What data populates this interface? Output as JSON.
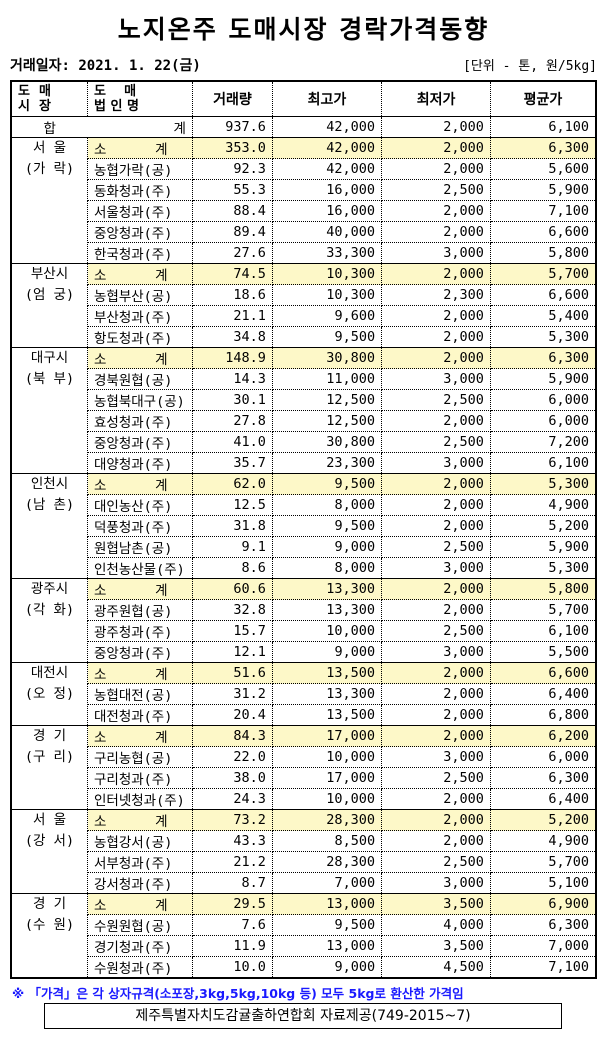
{
  "title": "노지온주 도매시장 경락가격동향",
  "date_label": "거래일자: 2021. 1. 22(금)",
  "unit_label": "[단위 - 톤, 원/5kg]",
  "headers": {
    "market": "도  매\n시  장",
    "corp": "도    매\n법 인 명",
    "volume": "거래량",
    "max": "최고가",
    "min": "최저가",
    "avg": "평균가"
  },
  "total": {
    "label1": "합",
    "label2": "계",
    "volume": "937.6",
    "max": "42,000",
    "min": "2,000",
    "avg": "6,100"
  },
  "groups": [
    {
      "market": [
        "서  울",
        "(가 락)"
      ],
      "rows": [
        [
          "소      계",
          "353.0",
          "42,000",
          "2,000",
          "6,300"
        ],
        [
          "농협가락(공)",
          "92.3",
          "42,000",
          "2,000",
          "5,600"
        ],
        [
          "동화청과(주)",
          "55.3",
          "16,000",
          "2,500",
          "5,900"
        ],
        [
          "서울청과(주)",
          "88.4",
          "16,000",
          "2,000",
          "7,100"
        ],
        [
          "중앙청과(주)",
          "89.4",
          "40,000",
          "2,000",
          "6,600"
        ],
        [
          "한국청과(주)",
          "27.6",
          "33,300",
          "3,000",
          "5,800"
        ]
      ]
    },
    {
      "market": [
        "부산시",
        "(엄 궁)"
      ],
      "rows": [
        [
          "소      계",
          "74.5",
          "10,300",
          "2,000",
          "5,700"
        ],
        [
          "농협부산(공)",
          "18.6",
          "10,300",
          "2,300",
          "6,600"
        ],
        [
          "부산청과(주)",
          "21.1",
          "9,600",
          "2,000",
          "5,400"
        ],
        [
          "항도청과(주)",
          "34.8",
          "9,500",
          "2,000",
          "5,300"
        ]
      ]
    },
    {
      "market": [
        "대구시",
        "(북 부)"
      ],
      "rows": [
        [
          "소      계",
          "148.9",
          "30,800",
          "2,000",
          "6,300"
        ],
        [
          "경북원협(공)",
          "14.3",
          "11,000",
          "3,000",
          "5,900"
        ],
        [
          "농협북대구(공)",
          "30.1",
          "12,500",
          "2,500",
          "6,000"
        ],
        [
          "효성청과(주)",
          "27.8",
          "12,500",
          "2,000",
          "6,000"
        ],
        [
          "중앙청과(주)",
          "41.0",
          "30,800",
          "2,500",
          "7,200"
        ],
        [
          "대양청과(주)",
          "35.7",
          "23,300",
          "3,000",
          "6,100"
        ]
      ]
    },
    {
      "market": [
        "인천시",
        "(남 촌)"
      ],
      "rows": [
        [
          "소      계",
          "62.0",
          "9,500",
          "2,000",
          "5,300"
        ],
        [
          "대인농산(주)",
          "12.5",
          "8,000",
          "2,000",
          "4,900"
        ],
        [
          "덕풍청과(주)",
          "31.8",
          "9,500",
          "2,000",
          "5,200"
        ],
        [
          "원협남촌(공)",
          "9.1",
          "9,000",
          "2,500",
          "5,900"
        ],
        [
          "인천농산물(주)",
          "8.6",
          "8,000",
          "3,000",
          "5,300"
        ]
      ]
    },
    {
      "market": [
        "광주시",
        "(각 화)"
      ],
      "rows": [
        [
          "소      계",
          "60.6",
          "13,300",
          "2,000",
          "5,800"
        ],
        [
          "광주원협(공)",
          "32.8",
          "13,300",
          "2,000",
          "5,700"
        ],
        [
          "광주청과(주)",
          "15.7",
          "10,000",
          "2,500",
          "6,100"
        ],
        [
          "중앙청과(주)",
          "12.1",
          "9,000",
          "3,000",
          "5,500"
        ]
      ]
    },
    {
      "market": [
        "대전시",
        "(오 정)"
      ],
      "rows": [
        [
          "소      계",
          "51.6",
          "13,500",
          "2,000",
          "6,600"
        ],
        [
          "농협대전(공)",
          "31.2",
          "13,300",
          "2,000",
          "6,400"
        ],
        [
          "대전청과(주)",
          "20.4",
          "13,500",
          "2,000",
          "6,800"
        ]
      ]
    },
    {
      "market": [
        "경  기",
        "(구 리)"
      ],
      "rows": [
        [
          "소      계",
          "84.3",
          "17,000",
          "2,000",
          "6,200"
        ],
        [
          "구리농협(공)",
          "22.0",
          "10,000",
          "3,000",
          "6,000"
        ],
        [
          "구리청과(주)",
          "38.0",
          "17,000",
          "2,500",
          "6,300"
        ],
        [
          "인터넷청과(주)",
          "24.3",
          "10,000",
          "2,000",
          "6,400"
        ]
      ]
    },
    {
      "market": [
        "서  울",
        "(강 서)"
      ],
      "rows": [
        [
          "소      계",
          "73.2",
          "28,300",
          "2,000",
          "5,200"
        ],
        [
          "농협강서(공)",
          "43.3",
          "8,500",
          "2,000",
          "4,900"
        ],
        [
          "서부청과(주)",
          "21.2",
          "28,300",
          "2,500",
          "5,700"
        ],
        [
          "강서청과(주)",
          "8.7",
          "7,000",
          "3,000",
          "5,100"
        ]
      ]
    },
    {
      "market": [
        "경  기",
        "(수 원)"
      ],
      "rows": [
        [
          "소      계",
          "29.5",
          "13,000",
          "3,500",
          "6,900"
        ],
        [
          "수원원협(공)",
          "7.6",
          "9,500",
          "4,000",
          "6,300"
        ],
        [
          "경기청과(주)",
          "11.9",
          "13,000",
          "3,500",
          "7,000"
        ],
        [
          "수원청과(주)",
          "10.0",
          "9,000",
          "4,500",
          "7,100"
        ]
      ]
    }
  ],
  "note": "※ 「가격」은 각 상자규격(소포장,3kg,5kg,10kg 등) 모두 5kg로 환산한 가격임",
  "source": "제주특별자치도감귤출하연합회 자료제공(749-2015~7)",
  "colors": {
    "subtotal_fill": "#fdf8c8",
    "note_text": "#1a1aff"
  }
}
